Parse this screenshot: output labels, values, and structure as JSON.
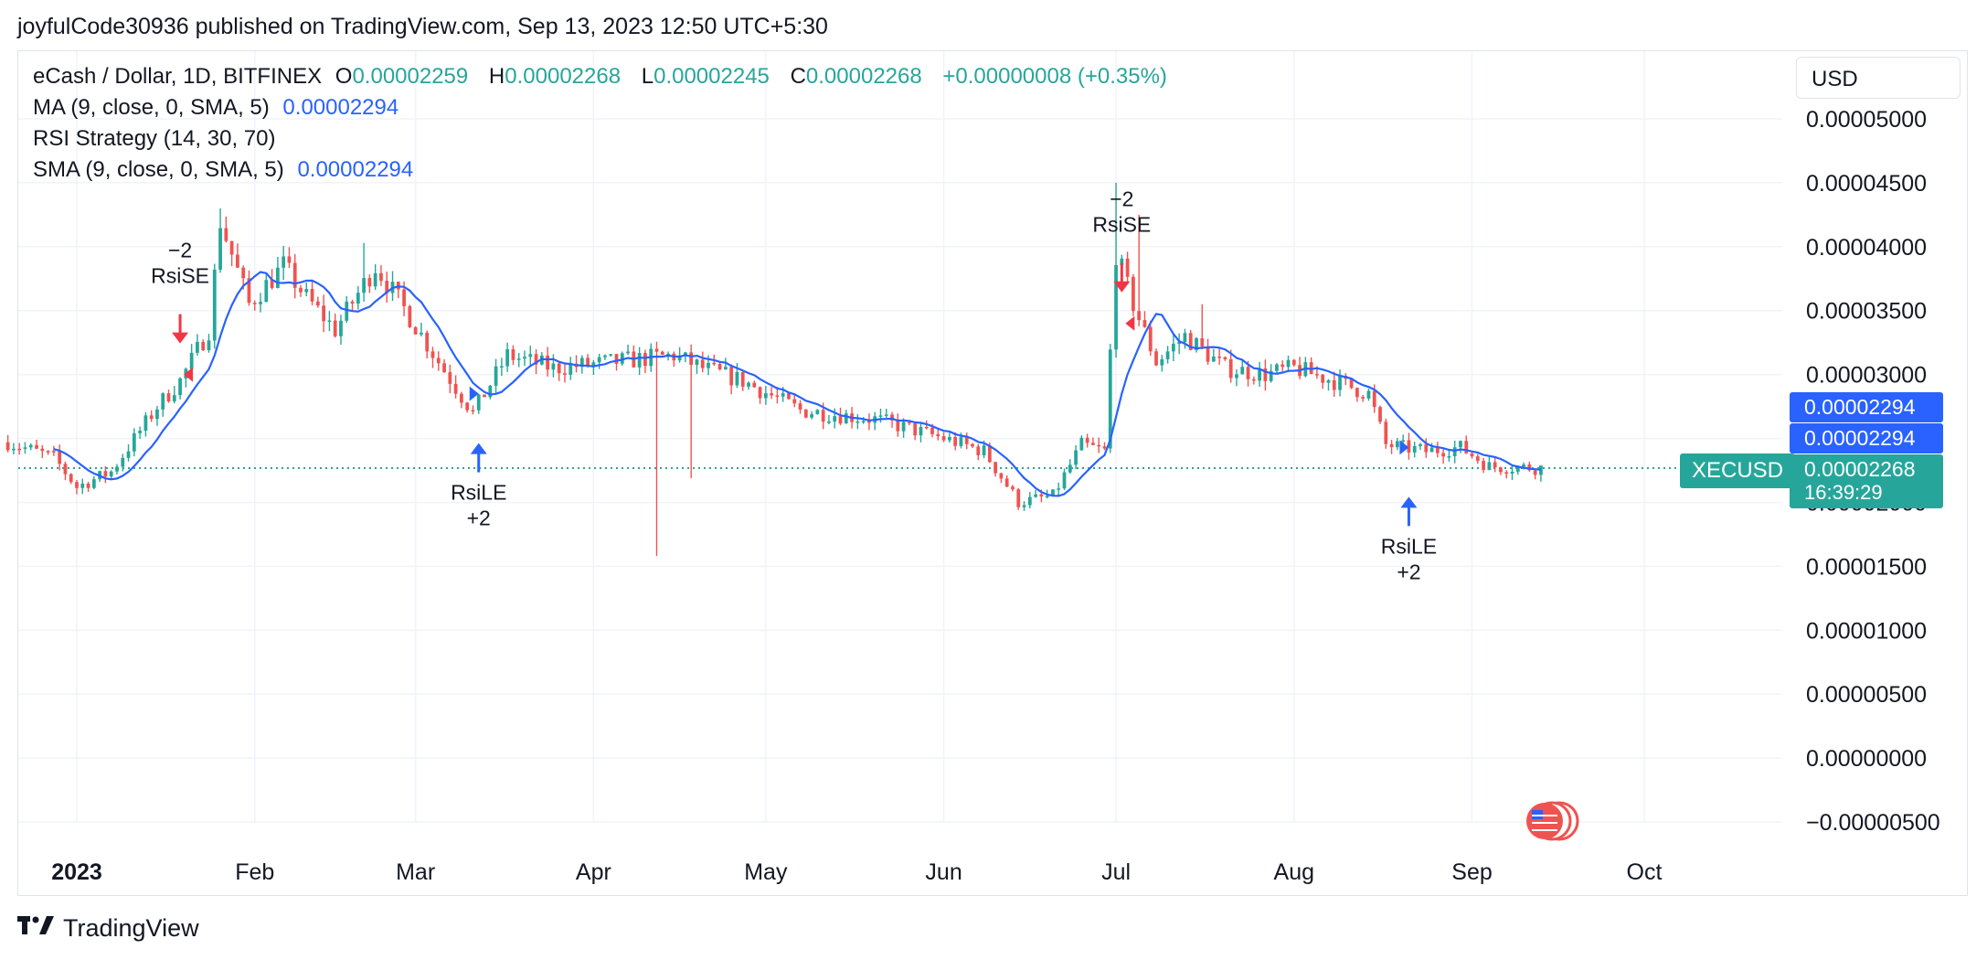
{
  "header": {
    "published_line": "joyfulCode30936 published on TradingView.com, Sep 13, 2023 12:50 UTC+5:30"
  },
  "legend": {
    "symbol": "eCash / Dollar, 1D, BITFINEX",
    "o_label": "O",
    "o_value": "0.00002259",
    "h_label": "H",
    "h_value": "0.00002268",
    "l_label": "L",
    "l_value": "0.00002245",
    "c_label": "C",
    "c_value": "0.00002268",
    "change": "+0.00000008 (+0.35%)",
    "ma_label": "MA (9, close, 0, SMA, 5)",
    "ma_value": "0.00002294",
    "rsi_label": "RSI Strategy (14, 30, 70)",
    "sma_label": "SMA (9, close, 0, SMA, 5)",
    "sma_value": "0.00002294"
  },
  "price_scale": {
    "currency": "USD",
    "tag_ma": "0.00002294",
    "tag_sma": "0.00002294",
    "tag_last": "0.00002268",
    "tag_countdown": "16:39:29",
    "symbol_tag": "XECUSD"
  },
  "footer": {
    "brand": "TradingView"
  },
  "colors": {
    "up": "#26a69a",
    "down": "#ef5350",
    "ma": "#2962ff",
    "buy": "#2962ff",
    "sell": "#f23645",
    "grid": "#f0f3fa"
  },
  "chart_data": {
    "type": "candlestick",
    "symbol": "XECUSD",
    "y_ticks": [
      5e-05,
      4.5e-05,
      4e-05,
      3.5e-05,
      3e-05,
      2.5e-05,
      2e-05,
      1.5e-05,
      1e-05,
      5e-06,
      0.0,
      -5e-06
    ],
    "y_tick_labels": [
      "0.00005000",
      "0.00004500",
      "0.00004000",
      "0.00003500",
      "0.00003000",
      "0.00002500",
      "0.00002000",
      "0.00001500",
      "0.00001000",
      "0.00000500",
      "0.00000000",
      "−0.00000500"
    ],
    "x_tick_labels": [
      {
        "date": "2023-01-01",
        "label": "2023",
        "bold": true
      },
      {
        "date": "2023-02-01",
        "label": "Feb"
      },
      {
        "date": "2023-03-01",
        "label": "Mar"
      },
      {
        "date": "2023-04-01",
        "label": "Apr"
      },
      {
        "date": "2023-05-01",
        "label": "May"
      },
      {
        "date": "2023-06-01",
        "label": "Jun"
      },
      {
        "date": "2023-07-01",
        "label": "Jul"
      },
      {
        "date": "2023-08-01",
        "label": "Aug"
      },
      {
        "date": "2023-09-01",
        "label": "Sep"
      },
      {
        "date": "2023-10-01",
        "label": "Oct"
      }
    ],
    "x_range": [
      "2022-12-20",
      "2023-10-30"
    ],
    "y_range": [
      -5e-06,
      5e-05
    ],
    "last_price": 2.268e-05,
    "price_series": [
      {
        "date": "2022-12-20",
        "price": 2.47e-05
      },
      {
        "date": "2022-12-28",
        "price": 2.35e-05
      },
      {
        "date": "2023-01-01",
        "price": 2.12e-05
      },
      {
        "date": "2023-01-07",
        "price": 2.24e-05
      },
      {
        "date": "2023-01-15",
        "price": 2.75e-05
      },
      {
        "date": "2023-01-19",
        "price": 2.95e-05
      },
      {
        "date": "2023-01-24",
        "price": 3.35e-05
      },
      {
        "date": "2023-01-26",
        "price": 4.2e-05
      },
      {
        "date": "2023-01-31",
        "price": 3.55e-05
      },
      {
        "date": "2023-02-06",
        "price": 3.85e-05
      },
      {
        "date": "2023-02-10",
        "price": 3.6e-05
      },
      {
        "date": "2023-02-15",
        "price": 3.35e-05
      },
      {
        "date": "2023-02-22",
        "price": 3.85e-05
      },
      {
        "date": "2023-02-28",
        "price": 3.45e-05
      },
      {
        "date": "2023-03-05",
        "price": 3.1e-05
      },
      {
        "date": "2023-03-11",
        "price": 2.7e-05
      },
      {
        "date": "2023-03-17",
        "price": 3.15e-05
      },
      {
        "date": "2023-03-25",
        "price": 3.05e-05
      },
      {
        "date": "2023-04-05",
        "price": 3.1e-05
      },
      {
        "date": "2023-04-15",
        "price": 3.15e-05
      },
      {
        "date": "2023-04-20",
        "price": 3.05e-05
      },
      {
        "date": "2023-04-27",
        "price": 2.95e-05
      },
      {
        "date": "2023-05-07",
        "price": 2.72e-05
      },
      {
        "date": "2023-05-20",
        "price": 2.65e-05
      },
      {
        "date": "2023-06-01",
        "price": 2.5e-05
      },
      {
        "date": "2023-06-08",
        "price": 2.4e-05
      },
      {
        "date": "2023-06-14",
        "price": 2e-05
      },
      {
        "date": "2023-06-20",
        "price": 2.05e-05
      },
      {
        "date": "2023-06-25",
        "price": 2.45e-05
      },
      {
        "date": "2023-06-29",
        "price": 2.4e-05
      },
      {
        "date": "2023-07-01",
        "price": 3.95e-05
      },
      {
        "date": "2023-07-04",
        "price": 3.55e-05
      },
      {
        "date": "2023-07-08",
        "price": 3.1e-05
      },
      {
        "date": "2023-07-13",
        "price": 3.3e-05
      },
      {
        "date": "2023-07-20",
        "price": 3.05e-05
      },
      {
        "date": "2023-07-27",
        "price": 3e-05
      },
      {
        "date": "2023-08-01",
        "price": 3.05e-05
      },
      {
        "date": "2023-08-08",
        "price": 2.95e-05
      },
      {
        "date": "2023-08-14",
        "price": 2.85e-05
      },
      {
        "date": "2023-08-17",
        "price": 2.45e-05
      },
      {
        "date": "2023-08-24",
        "price": 2.4e-05
      },
      {
        "date": "2023-08-30",
        "price": 2.43e-05
      },
      {
        "date": "2023-09-04",
        "price": 2.28e-05
      },
      {
        "date": "2023-09-13",
        "price": 2.27e-05
      }
    ],
    "wick_extremes": [
      {
        "date": "2023-01-26",
        "high": 4.3e-05
      },
      {
        "date": "2023-02-20",
        "high": 4.03e-05
      },
      {
        "date": "2023-04-12",
        "low": 1.58e-05
      },
      {
        "date": "2023-04-18",
        "low": 2.19e-05
      },
      {
        "date": "2023-07-01",
        "high": 4.5e-05
      },
      {
        "date": "2023-07-05",
        "high": 4.25e-05
      },
      {
        "date": "2023-07-16",
        "high": 3.55e-05
      }
    ],
    "signals": [
      {
        "date": "2023-01-19",
        "type": "sell",
        "label": "RsiSE",
        "qty": "−2",
        "price": 3e-05
      },
      {
        "date": "2023-03-12",
        "type": "buy",
        "label": "RsiLE",
        "qty": "+2",
        "price": 2.85e-05
      },
      {
        "date": "2023-07-02",
        "type": "sell",
        "label": "RsiSE",
        "qty": "−2",
        "price": 3.4e-05
      },
      {
        "date": "2023-08-21",
        "type": "buy",
        "label": "RsiLE",
        "qty": "+2",
        "price": 2.43e-05
      }
    ]
  }
}
